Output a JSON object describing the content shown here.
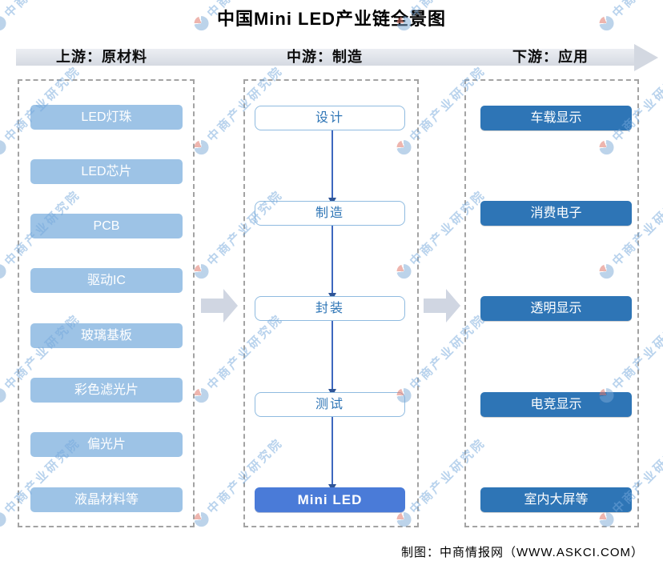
{
  "title": "中国Mini LED产业链全景图",
  "header": {
    "segments": [
      {
        "label": "上游：原材料"
      },
      {
        "label": "中游：制造"
      },
      {
        "label": "下游：应用"
      }
    ]
  },
  "columns": {
    "upstream": {
      "items": [
        "LED灯珠",
        "LED芯片",
        "PCB",
        "驱动IC",
        "玻璃基板",
        "彩色滤光片",
        "偏光片",
        "液晶材料等"
      ]
    },
    "midstream": {
      "items": [
        "设计",
        "制造",
        "封装",
        "测试"
      ],
      "final": "Mini LED"
    },
    "downstream": {
      "items": [
        "车载显示",
        "消费电子",
        "透明显示",
        "电竞显示",
        "室内大屏等"
      ]
    }
  },
  "watermark": {
    "text": "中商产业研究院"
  },
  "footer": {
    "credit": "制图：中商情报网（WWW.ASKCI.COM）"
  },
  "colors": {
    "upstream_box": "#9DC3E6",
    "downstream_box": "#2E75B6",
    "final_box": "#4A7BD8",
    "process_border": "#8FBBE0",
    "process_text": "#2E75B6",
    "connector": "#3E68BF",
    "big_arrow": "#D0D6E2",
    "band": "#D5DAE2"
  }
}
